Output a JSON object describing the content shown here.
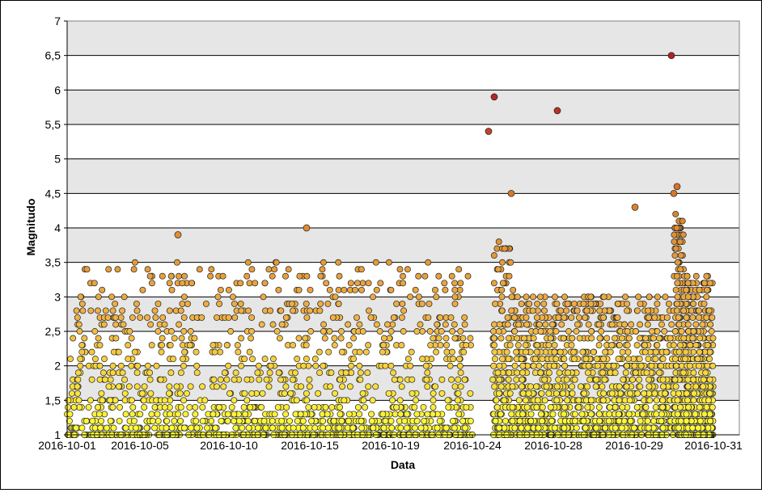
{
  "chart_data": {
    "type": "scatter",
    "xlabel": "Data",
    "ylabel": "Magnitudo",
    "ylim": [
      1,
      7
    ],
    "y_ticks": [
      "1",
      "1,5",
      "2",
      "2,5",
      "3",
      "3,5",
      "4",
      "4,5",
      "5",
      "5,5",
      "6",
      "6,5",
      "7"
    ],
    "x_ticks": [
      "2016-10-01",
      "2016-10-05",
      "2016-10-10",
      "2016-10-15",
      "2016-10-19",
      "2016-10-24",
      "2016-10-28",
      "2016-10-29",
      "2016-10-31"
    ],
    "grid": true,
    "legend": "none",
    "band_color": "#e6e6e6",
    "point_color_scale": [
      "#ffff33",
      "#f0b347",
      "#d9822b",
      "#b22222"
    ],
    "notable_events": [
      {
        "x": "2016-10-25",
        "y": 5.4
      },
      {
        "x": "2016-10-25",
        "y": 5.9
      },
      {
        "x": "2016-10-26",
        "y": 4.5
      },
      {
        "x": "2016-10-28",
        "y": 5.7
      },
      {
        "x": "2016-10-29",
        "y": 4.3
      },
      {
        "x": "2016-10-30",
        "y": 6.5
      },
      {
        "x": "2016-10-30",
        "y": 4.6
      },
      {
        "x": "2016-10-30",
        "y": 4.5
      },
      {
        "x": "2016-10-15",
        "y": 4.0
      },
      {
        "x": "2016-10-07",
        "y": 3.9
      }
    ],
    "background_series": [
      {
        "x0": "2016-10-01",
        "x1": "2016-10-24",
        "ymin": 1.0,
        "ymax": 3.5
      },
      {
        "x0": "2016-10-25",
        "x1": "2016-10-30",
        "ymin": 1.0,
        "ymax": 4.3
      },
      {
        "x0": "2016-10-30",
        "x1": "2016-10-31",
        "ymin": 1.0,
        "ymax": 4.5
      }
    ]
  }
}
